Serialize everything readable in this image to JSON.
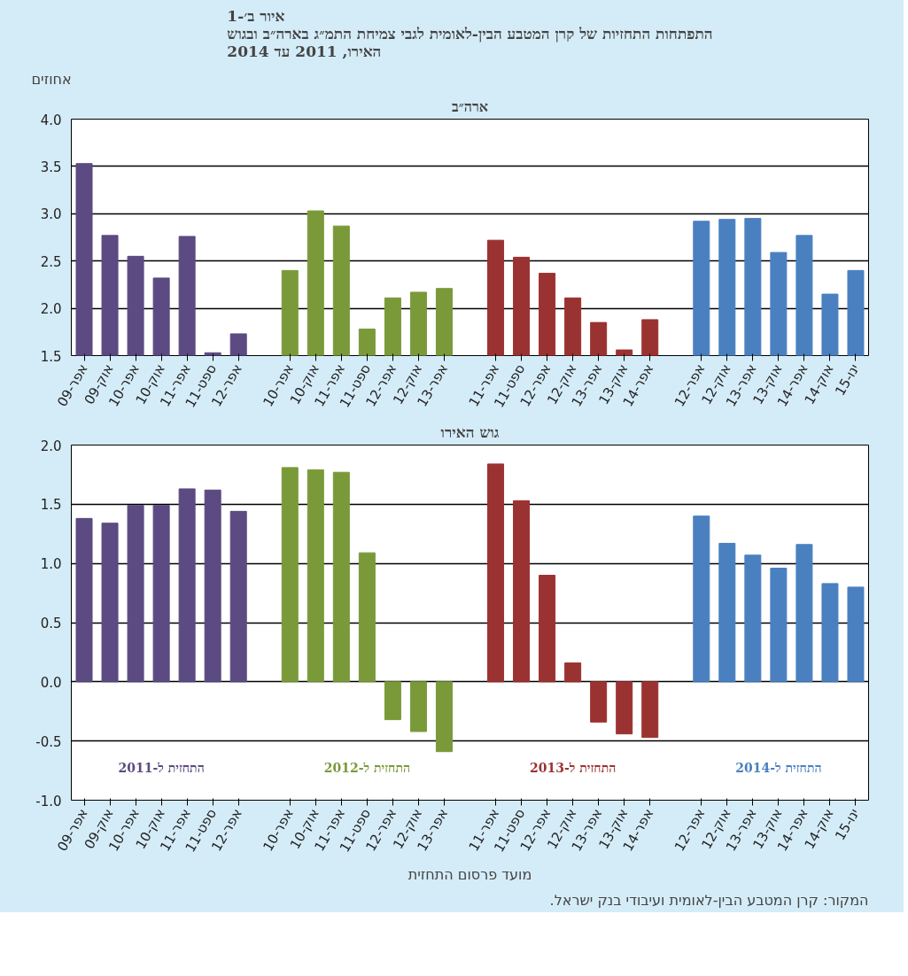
{
  "chart_data": [
    {
      "type": "bar",
      "title": "איור ב׳-1\nהתפתחות התחזיות של קרן המטבע הבין-לאומית לגבי צמיחת התמ״ג בארה״ב ובגוש\nהאירו, 2011 עד 2014",
      "subtitle": "ארה״ב",
      "ylabel": "אחוזים",
      "categories": [
        "אפר-09",
        "אוק-09",
        "אפר-10",
        "אוק-10",
        "אפר-11",
        "ספט-11",
        "אפר-12",
        null,
        "אפר-10",
        "אוק-10",
        "אפר-11",
        "ספט-11",
        "אפר-12",
        "אוק-12",
        "אפר-13",
        null,
        "אפר-11",
        "ספט-11",
        "אפר-12",
        "אוק-12",
        "אפר-13",
        "אוק-13",
        "אפר-14",
        null,
        "אפר-12",
        "אוק-12",
        "אפר-13",
        "אוק-13",
        "אפר-14",
        "אוק-14",
        "ינו-15"
      ],
      "series": [
        {
          "color": "#5c4a82",
          "values": [
            3.53,
            2.77,
            2.55,
            2.32,
            2.76,
            1.53,
            1.73,
            null,
            null,
            null,
            null,
            null,
            null,
            null,
            null,
            null,
            null,
            null,
            null,
            null,
            null,
            null,
            null,
            null,
            null,
            null,
            null,
            null,
            null,
            null,
            null
          ]
        },
        {
          "color": "#7a9a3a",
          "values": [
            null,
            null,
            null,
            null,
            null,
            null,
            null,
            null,
            2.4,
            3.03,
            2.87,
            1.78,
            2.11,
            2.17,
            2.21,
            null,
            null,
            null,
            null,
            null,
            null,
            null,
            null,
            null,
            null,
            null,
            null,
            null,
            null,
            null,
            null
          ]
        },
        {
          "color": "#9b3232",
          "values": [
            null,
            null,
            null,
            null,
            null,
            null,
            null,
            null,
            null,
            null,
            null,
            null,
            null,
            null,
            null,
            null,
            2.72,
            2.54,
            2.37,
            2.11,
            1.85,
            1.56,
            1.88,
            null,
            null,
            null,
            null,
            null,
            null,
            null,
            null
          ]
        },
        {
          "color": "#4a80c0",
          "values": [
            null,
            null,
            null,
            null,
            null,
            null,
            null,
            null,
            null,
            null,
            null,
            null,
            null,
            null,
            null,
            null,
            null,
            null,
            null,
            null,
            null,
            null,
            null,
            null,
            2.92,
            2.94,
            2.95,
            2.59,
            2.77,
            2.15,
            2.4
          ]
        }
      ],
      "ylim": [
        1.5,
        4.0
      ],
      "yticks": [
        {
          "value": 1.5,
          "label": "1.5"
        },
        {
          "value": 2.0,
          "label": "2.0"
        },
        {
          "value": 2.5,
          "label": "2.5"
        },
        {
          "value": 3.0,
          "label": "3.0"
        },
        {
          "value": 3.5,
          "label": "3.5"
        },
        {
          "value": 4.0,
          "label": "4.0"
        }
      ],
      "grid": "y"
    },
    {
      "type": "bar",
      "title": "גוש האירו",
      "xlabel": "מועד פרסום התחזית",
      "annotations": [
        "המקור: קרן המטבע הבין-לאומית ועיבודי בנק ישראל."
      ],
      "categories": [
        "אפר-09",
        "אוק-09",
        "אפר-10",
        "אוק-10",
        "אפר-11",
        "ספט-11",
        "אפר-12",
        null,
        "אפר-10",
        "אוק-10",
        "אפר-11",
        "ספט-11",
        "אפר-12",
        "אוק-12",
        "אפר-13",
        null,
        "אפר-11",
        "ספט-11",
        "אפר-12",
        "אוק-12",
        "אפר-13",
        "אוק-13",
        "אפר-14",
        null,
        "אפר-12",
        "אוק-12",
        "אפר-13",
        "אוק-13",
        "אפר-14",
        "אוק-14",
        "ינו-15"
      ],
      "series": [
        {
          "name": "התחזית ל-2011",
          "color": "#5c4a82",
          "values": [
            1.38,
            1.34,
            1.49,
            1.49,
            1.63,
            1.62,
            1.44,
            null,
            null,
            null,
            null,
            null,
            null,
            null,
            null,
            null,
            null,
            null,
            null,
            null,
            null,
            null,
            null,
            null,
            null,
            null,
            null,
            null,
            null,
            null,
            null
          ]
        },
        {
          "name": "התחזית ל-2012",
          "color": "#7a9a3a",
          "values": [
            null,
            null,
            null,
            null,
            null,
            null,
            null,
            null,
            1.81,
            1.79,
            1.77,
            1.09,
            -0.32,
            -0.42,
            -0.59,
            null,
            null,
            null,
            null,
            null,
            null,
            null,
            null,
            null,
            null,
            null,
            null,
            null,
            null,
            null,
            null
          ]
        },
        {
          "name": "התחזית ל-2013",
          "color": "#9b3232",
          "values": [
            null,
            null,
            null,
            null,
            null,
            null,
            null,
            null,
            null,
            null,
            null,
            null,
            null,
            null,
            null,
            null,
            1.84,
            1.53,
            0.9,
            0.16,
            -0.34,
            -0.44,
            -0.47,
            null,
            null,
            null,
            null,
            null,
            null,
            null,
            null
          ]
        },
        {
          "name": "התחזית ל-2014",
          "color": "#4a80c0",
          "values": [
            null,
            null,
            null,
            null,
            null,
            null,
            null,
            null,
            null,
            null,
            null,
            null,
            null,
            null,
            null,
            null,
            null,
            null,
            null,
            null,
            null,
            null,
            null,
            null,
            1.4,
            1.17,
            1.07,
            0.96,
            1.16,
            0.83,
            0.8
          ]
        }
      ],
      "ylim": [
        -1.0,
        2.0
      ],
      "yticks": [
        {
          "value": -1.0,
          "label": "-1.0"
        },
        {
          "value": -0.5,
          "label": "-0.5"
        },
        {
          "value": 0.0,
          "label": "0.0"
        },
        {
          "value": 0.5,
          "label": "0.5"
        },
        {
          "value": 1.0,
          "label": "1.0"
        },
        {
          "value": 1.5,
          "label": "1.5"
        },
        {
          "value": 2.0,
          "label": "2.0"
        }
      ],
      "grid": "y"
    }
  ]
}
